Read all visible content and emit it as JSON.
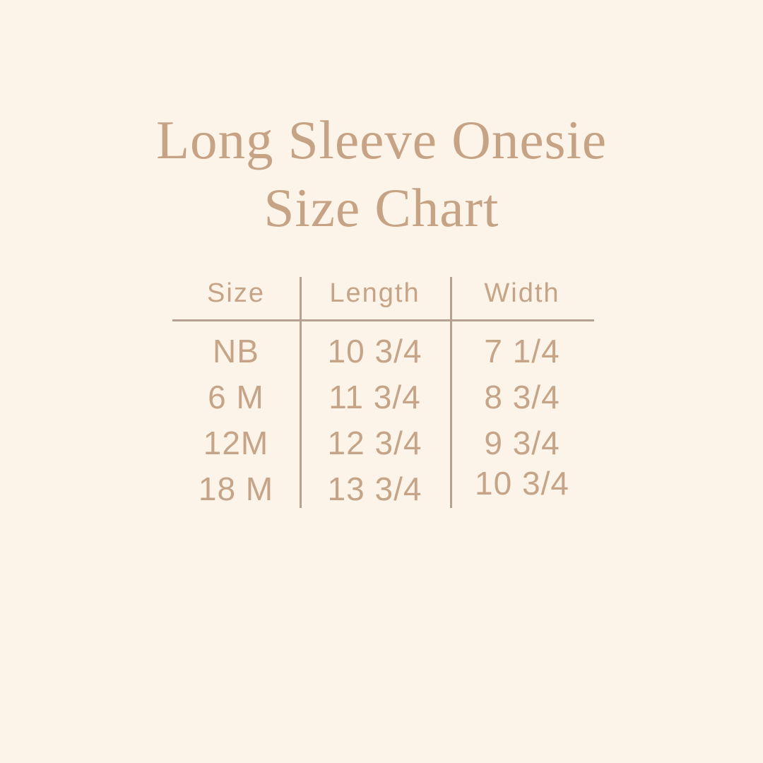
{
  "colors": {
    "background": "#fcf3e9",
    "title": "#c6a384",
    "tabletext": "#c6a487",
    "rule": "#b4a191"
  },
  "title": {
    "line1": "Long Sleeve Onesie",
    "line2": "Size Chart"
  },
  "chart_data": {
    "type": "table",
    "title": "Long Sleeve Onesie Size Chart",
    "columns": [
      "Size",
      "Length",
      "Width"
    ],
    "rows": [
      [
        "NB",
        "10 3/4",
        "7 1/4"
      ],
      [
        "6 M",
        "11 3/4",
        "8 3/4"
      ],
      [
        "12M",
        "12 3/4",
        "9 3/4"
      ],
      [
        "18 M",
        "13 3/4",
        "10 3/4"
      ]
    ]
  }
}
